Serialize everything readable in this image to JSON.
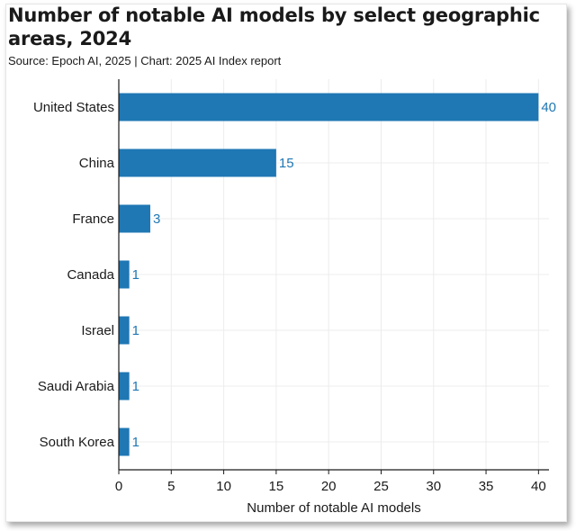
{
  "chart_data": {
    "type": "bar",
    "orientation": "horizontal",
    "title": "Number of notable AI models by select geographic areas, 2024",
    "subtitle": "Source: Epoch AI, 2025 | Chart: 2025 AI Index report",
    "categories": [
      "United States",
      "China",
      "France",
      "Canada",
      "Israel",
      "Saudi Arabia",
      "South Korea"
    ],
    "values": [
      40,
      15,
      3,
      1,
      1,
      1,
      1
    ],
    "data_labels": [
      "40",
      "15",
      "3",
      "1",
      "1",
      "1",
      "1"
    ],
    "xlabel": "Number of notable AI models",
    "ylabel": "",
    "xlim": [
      0,
      41
    ],
    "xticks": [
      0,
      5,
      10,
      15,
      20,
      25,
      30,
      35,
      40
    ],
    "grid": true,
    "bar_color": "#1f77b4",
    "label_color": "#1f77b4"
  }
}
